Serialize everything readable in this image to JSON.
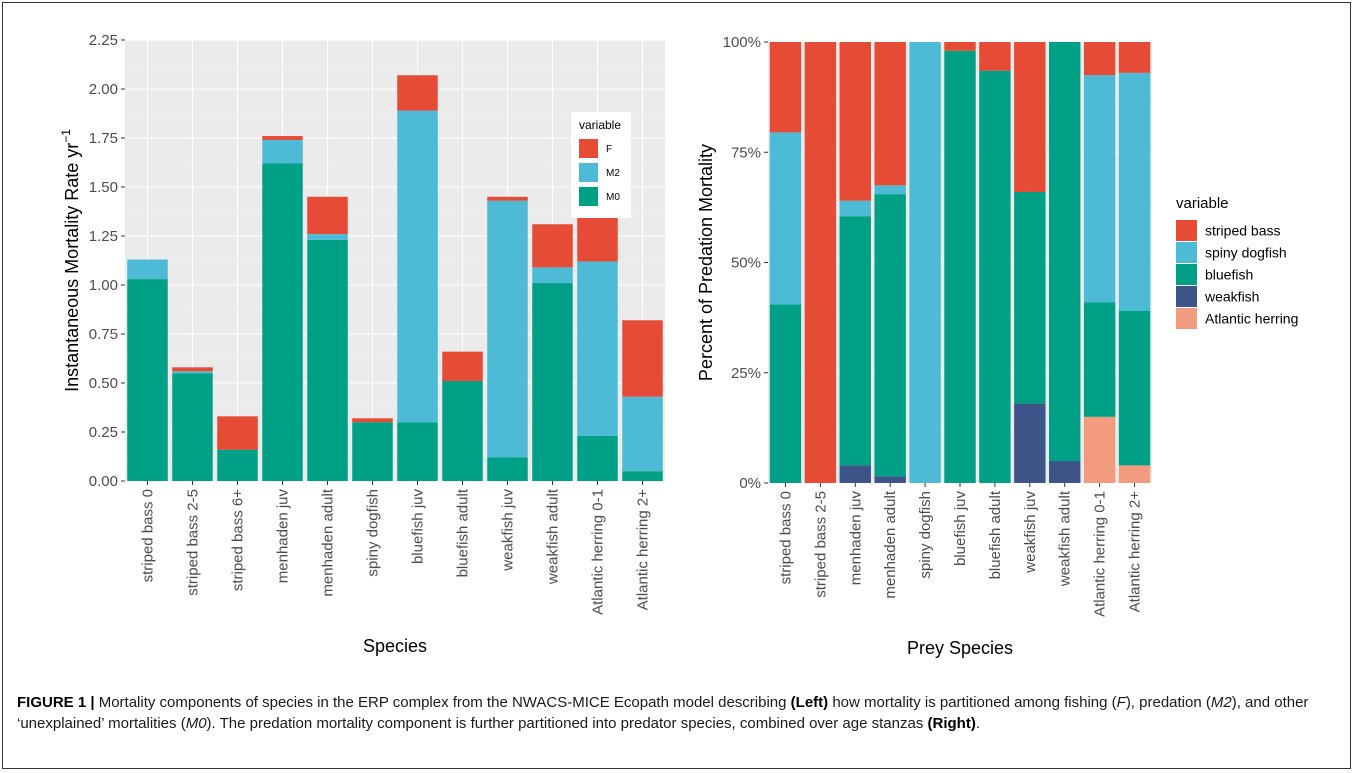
{
  "colors": {
    "panel_bg": "#ebebeb",
    "grid_major": "#ffffff",
    "grid_minor": "#f4f4f4",
    "axis_text": "#4d4d4d",
    "title_text": "#000000"
  },
  "chart_data": [
    {
      "type": "bar",
      "stacked": true,
      "title": "",
      "xlabel": "Species",
      "ylabel": "Instantaneous Mortality Rate  yr",
      "ylabel_superscript": "−1",
      "ylim": [
        0,
        2.25
      ],
      "yticks": [
        0,
        0.25,
        0.5,
        0.75,
        1.0,
        1.25,
        1.5,
        1.75,
        2.0,
        2.25
      ],
      "ytick_labels": [
        "0.00",
        "0.25",
        "0.50",
        "0.75",
        "1.00",
        "1.25",
        "1.50",
        "1.75",
        "2.00",
        "2.25"
      ],
      "grid": true,
      "legend_position": "inside top-right",
      "legend_title": "variable",
      "categories": [
        "striped bass 0",
        "striped bass 2-5",
        "striped bass 6+",
        "menhaden juv",
        "menhaden adult",
        "spiny dogfish",
        "bluefish juv",
        "bluefish adult",
        "weakfish juv",
        "weakfish adult",
        "Atlantic herring 0-1",
        "Atlantic herring 2+"
      ],
      "series": [
        {
          "name": "M0",
          "color": "#00a087",
          "values": [
            1.03,
            0.55,
            0.16,
            1.62,
            1.23,
            0.3,
            0.3,
            0.51,
            0.12,
            1.01,
            0.23,
            0.05
          ]
        },
        {
          "name": "M2",
          "color": "#4dbbd5",
          "values": [
            0.1,
            0.01,
            0.0,
            0.12,
            0.03,
            0.0,
            1.59,
            0.0,
            1.31,
            0.08,
            0.89,
            0.38
          ]
        },
        {
          "name": "F",
          "color": "#e64b35",
          "values": [
            0.0,
            0.02,
            0.17,
            0.02,
            0.19,
            0.02,
            0.18,
            0.15,
            0.02,
            0.22,
            0.25,
            0.39
          ]
        }
      ],
      "legend_order": [
        "F",
        "M2",
        "M0"
      ]
    },
    {
      "type": "bar",
      "stacked": true,
      "normalized": true,
      "title": "",
      "xlabel": "Prey Species",
      "ylabel": "Percent of Predation Mortality",
      "ylim": [
        0,
        100
      ],
      "yticks": [
        0,
        25,
        50,
        75,
        100
      ],
      "ytick_labels": [
        "0%",
        "25%",
        "50%",
        "75%",
        "100%"
      ],
      "grid": true,
      "legend_position": "right",
      "legend_title": "variable",
      "categories": [
        "striped bass 0",
        "striped bass 2-5",
        "menhaden juv",
        "menhaden adult",
        "spiny dogfish",
        "bluefish juv",
        "bluefish adult",
        "weakfish juv",
        "weakfish adult",
        "Atlantic herring 0-1",
        "Atlantic herring 2+"
      ],
      "series": [
        {
          "name": "Atlantic herring",
          "color": "#f39b7f",
          "values": [
            0,
            0,
            0,
            0,
            0,
            0,
            0,
            0,
            0,
            15,
            4
          ]
        },
        {
          "name": "weakfish",
          "color": "#3c5488",
          "values": [
            0,
            0,
            4,
            1.5,
            0,
            0,
            0,
            18,
            5,
            0,
            0
          ]
        },
        {
          "name": "bluefish",
          "color": "#00a087",
          "values": [
            40.5,
            0,
            56.5,
            64,
            0,
            98,
            93.5,
            48,
            95,
            26,
            35
          ]
        },
        {
          "name": "spiny dogfish",
          "color": "#4dbbd5",
          "values": [
            39,
            0,
            3.5,
            2,
            100,
            0,
            0,
            0,
            0,
            51.5,
            54
          ]
        },
        {
          "name": "striped bass",
          "color": "#e64b35",
          "values": [
            20.5,
            100,
            36,
            32.5,
            0,
            2,
            6.5,
            34,
            0,
            7.5,
            7
          ]
        }
      ],
      "legend_order": [
        "striped bass",
        "spiny dogfish",
        "bluefish",
        "weakfish",
        "Atlantic herring"
      ]
    }
  ],
  "caption": {
    "label": "FIGURE 1 |",
    "t1": " Mortality components of species in the ERP complex from the NWACS-MICE Ecopath model describing ",
    "left": "(Left)",
    "t2": " how mortality is partitioned among fishing (",
    "f": "F",
    "t3": "), predation (",
    "m2": "M2",
    "t4": "), and other ‘unexplained’ mortalities (",
    "m0": "M0",
    "t5": "). The predation mortality component is further partitioned into predator species, combined over age stanzas ",
    "right": "(Right)",
    "t6": "."
  }
}
